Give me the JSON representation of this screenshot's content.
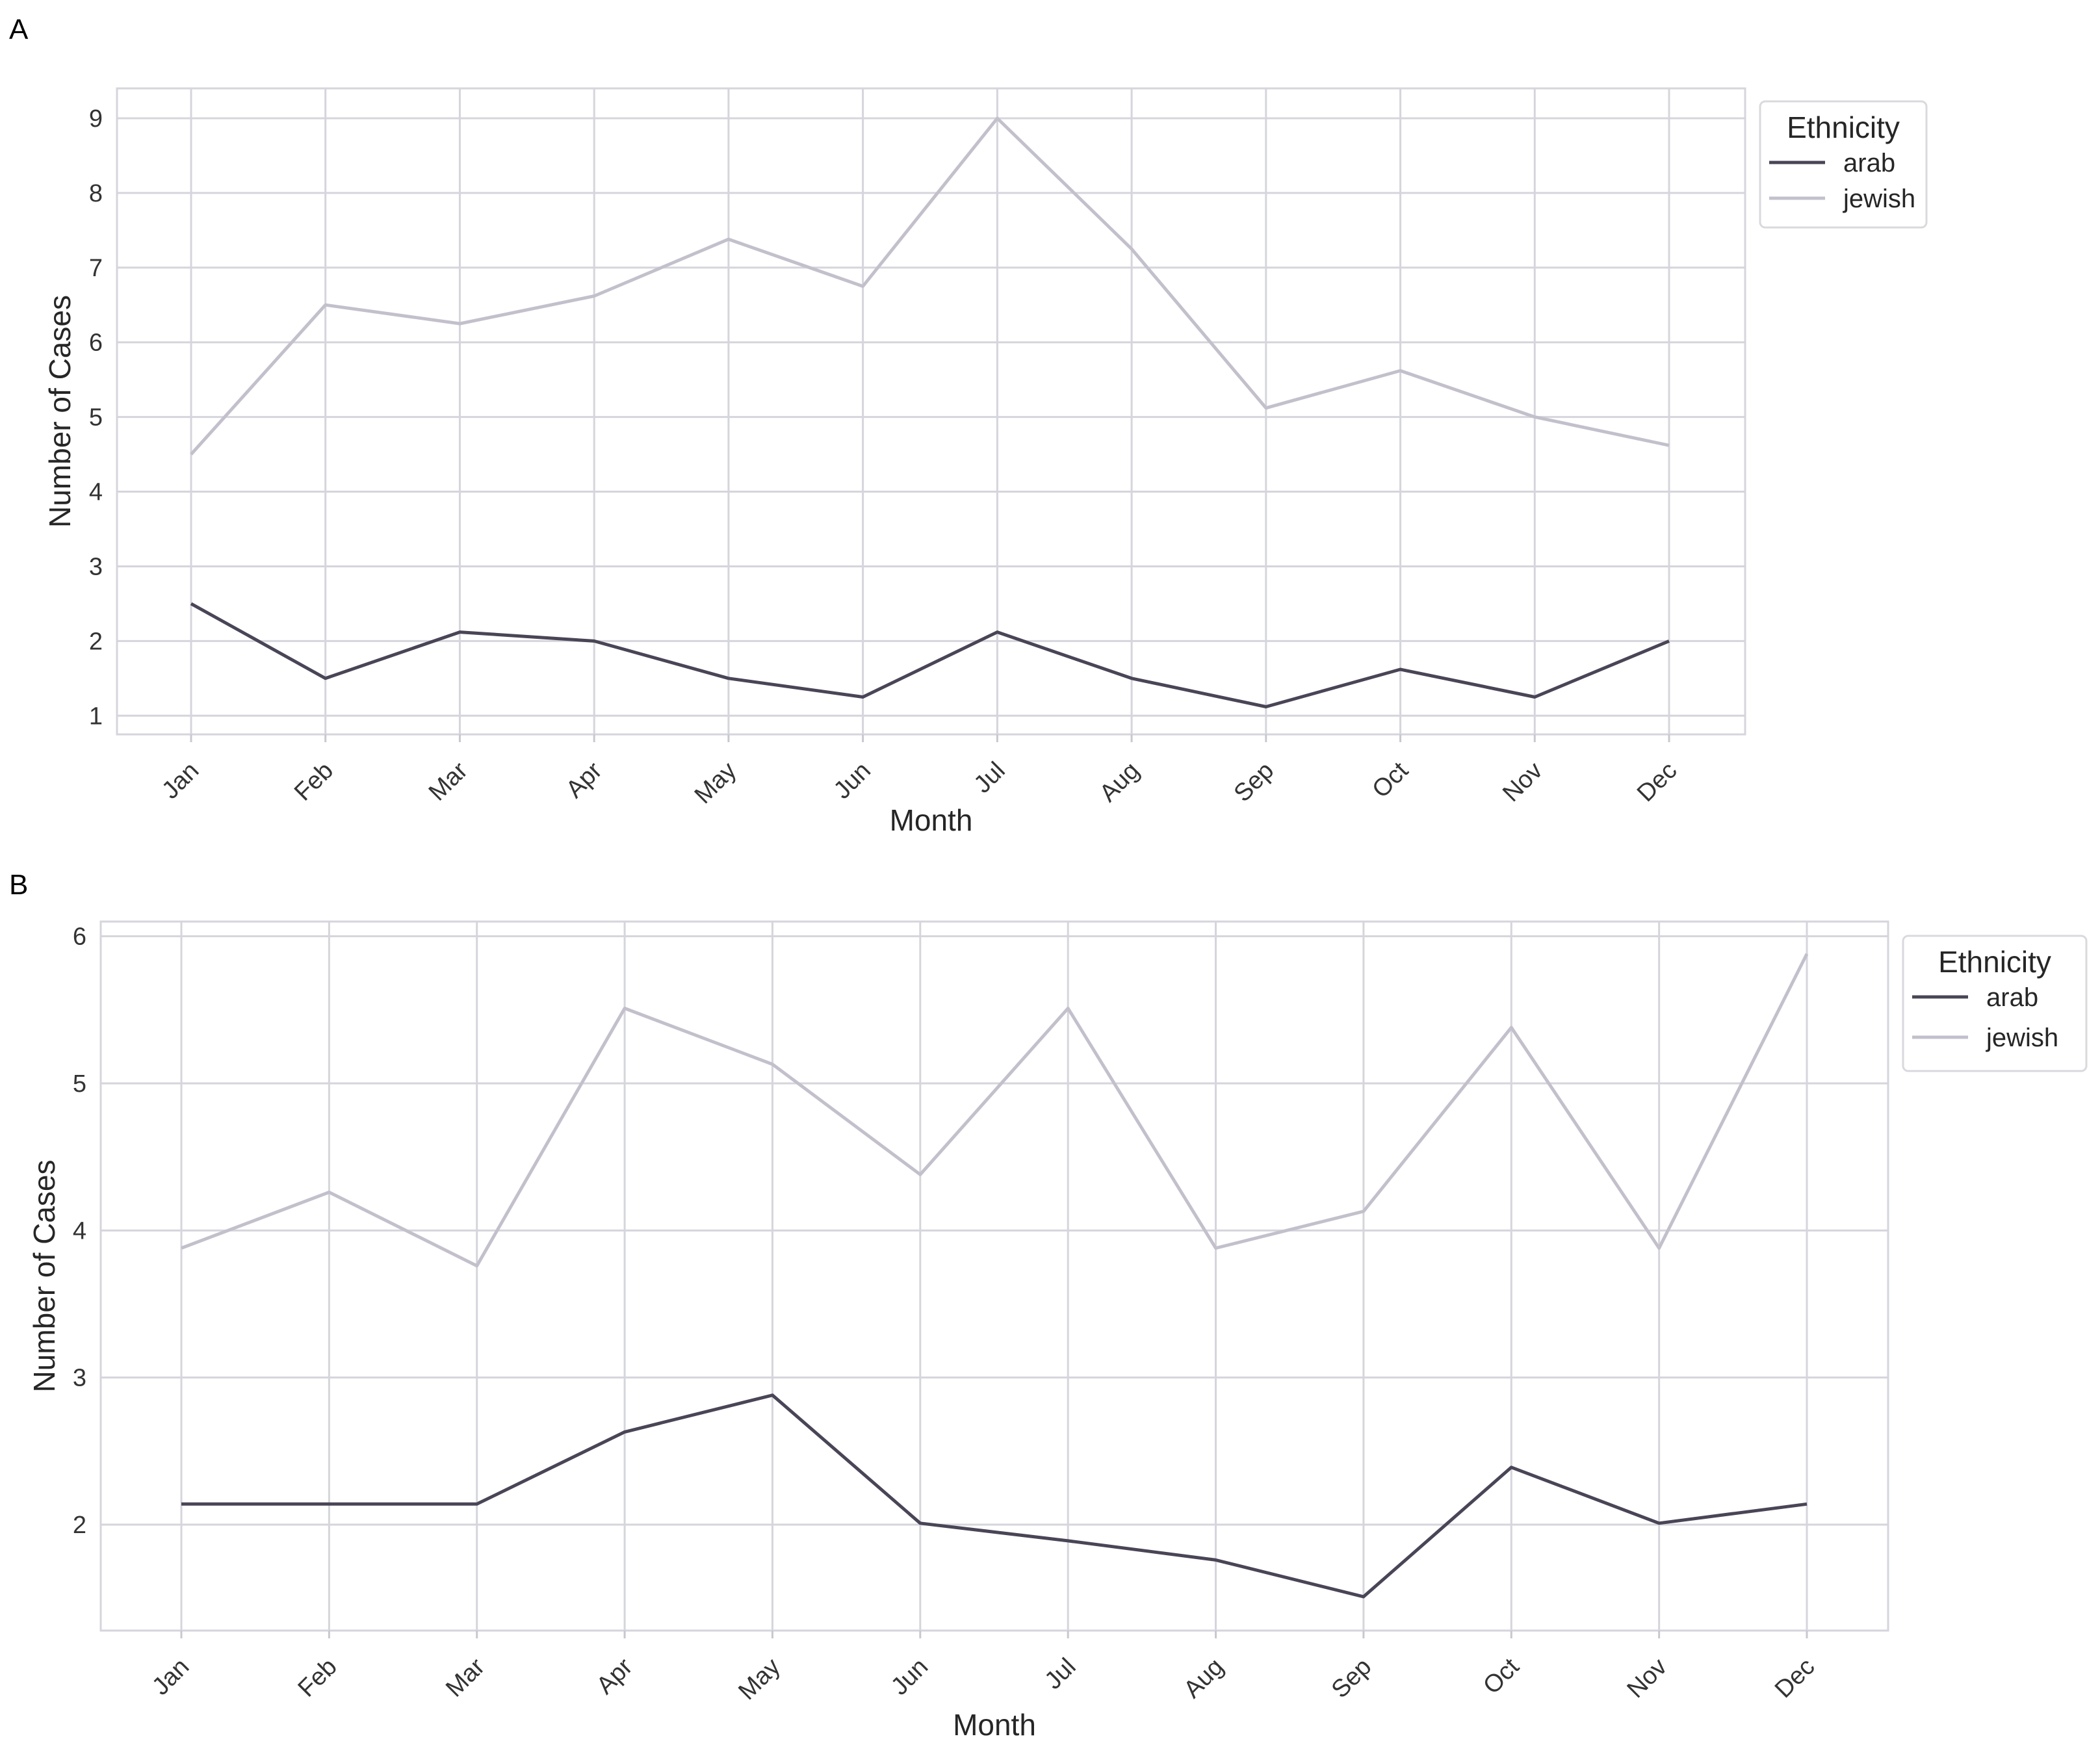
{
  "figure": {
    "panels": [
      {
        "letter": "A"
      },
      {
        "letter": "B"
      }
    ]
  },
  "chart_data": [
    {
      "type": "line",
      "panel": "A",
      "title": "",
      "xlabel": "Month",
      "ylabel": "Number of Cases",
      "categories": [
        "Jan",
        "Feb",
        "Mar",
        "Apr",
        "May",
        "Jun",
        "Jul",
        "Aug",
        "Sep",
        "Oct",
        "Nov",
        "Dec"
      ],
      "ylim": [
        0.75,
        9.4
      ],
      "yticks": [
        1,
        2,
        3,
        4,
        5,
        6,
        7,
        8,
        9
      ],
      "grid": true,
      "legend": {
        "title": "Ethnicity",
        "placement": "outside-right-top"
      },
      "series": [
        {
          "name": "arab",
          "color": "#4a4556",
          "values": [
            2.5,
            1.5,
            2.12,
            2.0,
            1.5,
            1.25,
            2.12,
            1.5,
            1.12,
            1.62,
            1.25,
            2.0
          ]
        },
        {
          "name": "jewish",
          "color": "#c3c0cc",
          "values": [
            4.5,
            6.5,
            6.25,
            6.62,
            7.38,
            6.75,
            9.0,
            7.25,
            5.12,
            5.62,
            5.0,
            4.62
          ]
        }
      ]
    },
    {
      "type": "line",
      "panel": "B",
      "title": "",
      "xlabel": "Month",
      "ylabel": "Number of Cases",
      "categories": [
        "Jan",
        "Feb",
        "Mar",
        "Apr",
        "May",
        "Jun",
        "Jul",
        "Aug",
        "Sep",
        "Oct",
        "Nov",
        "Dec"
      ],
      "ylim": [
        1.28,
        6.1
      ],
      "yticks": [
        2,
        3,
        4,
        5,
        6
      ],
      "grid": true,
      "legend": {
        "title": "Ethnicity",
        "placement": "outside-right-top"
      },
      "series": [
        {
          "name": "arab",
          "color": "#4a4556",
          "values": [
            2.14,
            2.14,
            2.14,
            2.63,
            2.88,
            2.01,
            1.89,
            1.76,
            1.51,
            2.39,
            2.01,
            2.14
          ]
        },
        {
          "name": "jewish",
          "color": "#c3c0cc",
          "values": [
            3.88,
            4.26,
            3.76,
            5.51,
            5.13,
            4.38,
            5.51,
            3.88,
            4.13,
            5.38,
            3.88,
            5.88
          ]
        }
      ]
    }
  ]
}
